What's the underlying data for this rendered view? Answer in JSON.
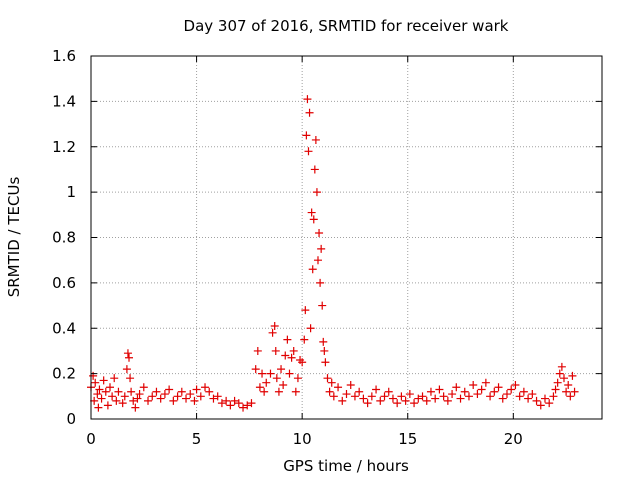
{
  "chart_data": {
    "type": "scatter",
    "title": "Day 307 of 2016, SRMTID for receiver wark",
    "xlabel": "GPS time / hours",
    "ylabel": "SRMTID / TECUs",
    "xlim": [
      0,
      24.2
    ],
    "ylim": [
      0,
      1.6
    ],
    "x_ticks": [
      0,
      5,
      10,
      15,
      20
    ],
    "x_tick_labels": [
      "0",
      "5",
      "10",
      "15",
      "20"
    ],
    "y_ticks": [
      0,
      0.2,
      0.4,
      0.6,
      0.8,
      1.0,
      1.2,
      1.4,
      1.6
    ],
    "y_tick_labels": [
      "0",
      "0.2",
      "0.4",
      "0.6",
      "0.8",
      "1",
      "1.2",
      "1.4",
      "1.6"
    ],
    "grid": true,
    "marker": "+",
    "series_color": "#e00000",
    "series": [
      {
        "name": "SRMTID",
        "x": [
          0.0,
          0.1,
          0.15,
          0.2,
          0.3,
          0.35,
          0.4,
          0.5,
          0.6,
          0.7,
          0.8,
          0.9,
          1.0,
          1.1,
          1.2,
          1.3,
          1.5,
          1.6,
          1.7,
          1.75,
          1.8,
          1.85,
          1.9,
          2.0,
          2.1,
          2.2,
          2.3,
          2.5,
          2.7,
          2.9,
          3.1,
          3.3,
          3.5,
          3.7,
          3.9,
          4.1,
          4.3,
          4.5,
          4.7,
          4.9,
          5.0,
          5.2,
          5.4,
          5.6,
          5.8,
          6.0,
          6.2,
          6.4,
          6.6,
          6.8,
          7.0,
          7.2,
          7.4,
          7.6,
          7.8,
          7.9,
          8.0,
          8.1,
          8.2,
          8.3,
          8.5,
          8.6,
          8.7,
          8.75,
          8.8,
          8.9,
          9.0,
          9.1,
          9.2,
          9.3,
          9.4,
          9.5,
          9.6,
          9.7,
          9.8,
          9.9,
          10.0,
          10.1,
          10.15,
          10.2,
          10.25,
          10.3,
          10.35,
          10.4,
          10.45,
          10.5,
          10.55,
          10.6,
          10.65,
          10.7,
          10.75,
          10.8,
          10.85,
          10.9,
          10.95,
          11.0,
          11.05,
          11.1,
          11.2,
          11.3,
          11.4,
          11.5,
          11.7,
          11.9,
          12.1,
          12.3,
          12.5,
          12.7,
          12.9,
          13.1,
          13.3,
          13.5,
          13.7,
          13.9,
          14.1,
          14.3,
          14.5,
          14.7,
          14.9,
          15.1,
          15.3,
          15.5,
          15.7,
          15.9,
          16.1,
          16.3,
          16.5,
          16.7,
          16.9,
          17.1,
          17.3,
          17.5,
          17.7,
          17.9,
          18.1,
          18.3,
          18.5,
          18.7,
          18.9,
          19.1,
          19.3,
          19.5,
          19.7,
          19.9,
          20.1,
          20.3,
          20.5,
          20.7,
          20.9,
          21.1,
          21.3,
          21.5,
          21.7,
          21.9,
          22.0,
          22.1,
          22.2,
          22.3,
          22.4,
          22.5,
          22.6,
          22.7,
          22.8,
          22.9
        ],
        "y": [
          0.14,
          0.19,
          0.08,
          0.16,
          0.11,
          0.05,
          0.13,
          0.09,
          0.17,
          0.12,
          0.06,
          0.14,
          0.1,
          0.18,
          0.08,
          0.12,
          0.07,
          0.1,
          0.22,
          0.29,
          0.27,
          0.18,
          0.12,
          0.08,
          0.05,
          0.09,
          0.11,
          0.14,
          0.08,
          0.1,
          0.12,
          0.09,
          0.11,
          0.13,
          0.08,
          0.1,
          0.12,
          0.09,
          0.11,
          0.08,
          0.13,
          0.1,
          0.14,
          0.12,
          0.09,
          0.1,
          0.07,
          0.08,
          0.06,
          0.08,
          0.07,
          0.05,
          0.06,
          0.07,
          0.22,
          0.3,
          0.14,
          0.2,
          0.12,
          0.16,
          0.2,
          0.38,
          0.41,
          0.3,
          0.18,
          0.12,
          0.22,
          0.15,
          0.28,
          0.35,
          0.2,
          0.27,
          0.3,
          0.12,
          0.18,
          0.26,
          0.25,
          0.35,
          0.48,
          1.25,
          1.41,
          1.18,
          1.35,
          0.4,
          0.91,
          0.66,
          0.88,
          1.1,
          1.23,
          1.0,
          0.7,
          0.82,
          0.6,
          0.75,
          0.5,
          0.34,
          0.3,
          0.25,
          0.18,
          0.12,
          0.16,
          0.1,
          0.14,
          0.08,
          0.11,
          0.15,
          0.1,
          0.12,
          0.09,
          0.07,
          0.1,
          0.13,
          0.08,
          0.1,
          0.12,
          0.09,
          0.07,
          0.1,
          0.08,
          0.11,
          0.07,
          0.09,
          0.1,
          0.08,
          0.12,
          0.09,
          0.13,
          0.1,
          0.08,
          0.11,
          0.14,
          0.09,
          0.12,
          0.1,
          0.15,
          0.11,
          0.13,
          0.16,
          0.1,
          0.12,
          0.14,
          0.09,
          0.11,
          0.13,
          0.15,
          0.1,
          0.12,
          0.09,
          0.11,
          0.08,
          0.06,
          0.09,
          0.07,
          0.1,
          0.13,
          0.16,
          0.2,
          0.23,
          0.18,
          0.12,
          0.15,
          0.1,
          0.19,
          0.12
        ]
      }
    ]
  }
}
